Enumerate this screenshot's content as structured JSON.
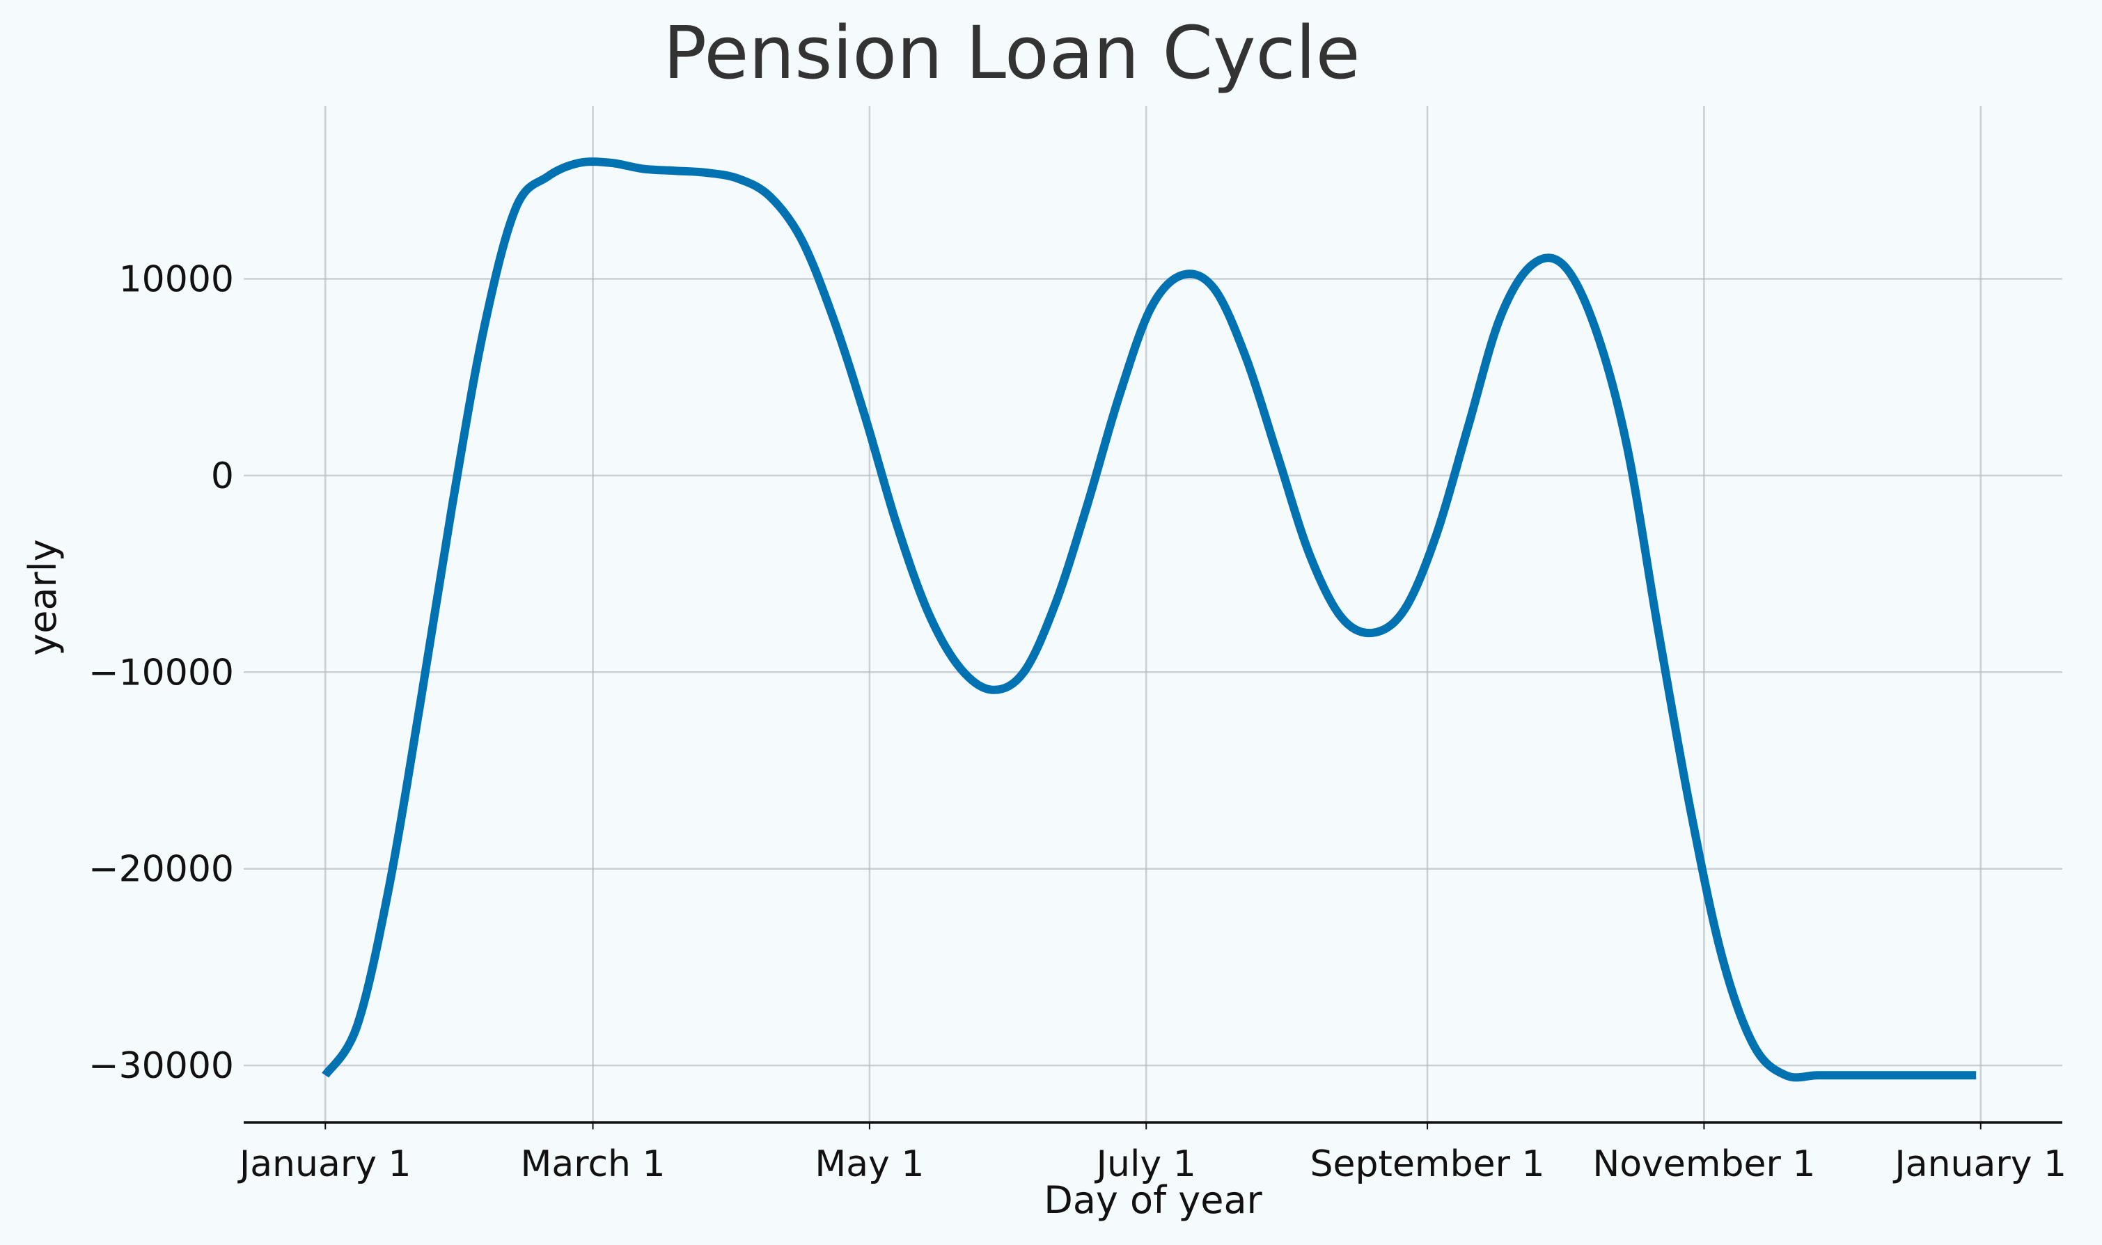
{
  "chart_data": {
    "type": "line",
    "title": "Pension Loan Cycle",
    "xlabel": "Day of year",
    "ylabel": "yearly",
    "x_ticks": [
      {
        "label": "January 1",
        "day": 0
      },
      {
        "label": "March 1",
        "day": 59
      },
      {
        "label": "May 1",
        "day": 120
      },
      {
        "label": "July 1",
        "day": 181
      },
      {
        "label": "September 1",
        "day": 243
      },
      {
        "label": "November 1",
        "day": 304
      },
      {
        "label": "January 1",
        "day": 365
      }
    ],
    "y_ticks": [
      {
        "label": "−30000",
        "value": -30000
      },
      {
        "label": "−20000",
        "value": -20000
      },
      {
        "label": "−10000",
        "value": -10000
      },
      {
        "label": "0",
        "value": 0
      },
      {
        "label": "10000",
        "value": 10000
      }
    ],
    "xlim": [
      -18,
      383
    ],
    "ylim": [
      -32900,
      18800
    ],
    "grid": true,
    "series_color": "#0072b2",
    "series": [
      {
        "x": [
          0,
          7,
          14,
          21,
          28,
          35,
          42,
          49,
          56,
          63,
          70,
          77,
          84,
          91,
          98,
          105,
          112,
          119,
          126,
          133,
          140,
          147,
          154,
          161,
          168,
          175,
          182,
          189,
          196,
          203,
          210,
          217,
          224,
          231,
          238,
          245,
          252,
          259,
          266,
          273,
          280,
          287,
          294,
          301,
          308,
          315,
          322,
          329,
          336,
          343,
          350,
          357,
          364
        ],
        "values": [
          -30500,
          -28000,
          -21000,
          -11500,
          -1500,
          7500,
          13600,
          15200,
          15900,
          15900,
          15600,
          15500,
          15400,
          15100,
          14200,
          12000,
          8000,
          3000,
          -2500,
          -7000,
          -9800,
          -10900,
          -10000,
          -6500,
          -1500,
          4000,
          8500,
          10200,
          9500,
          6000,
          1000,
          -4000,
          -7200,
          -8000,
          -6800,
          -3000,
          2500,
          8000,
          10700,
          10700,
          7500,
          1500,
          -8000,
          -17000,
          -24500,
          -29000,
          -30500,
          -30500,
          -30500,
          -30500,
          -30500,
          -30500,
          -30500
        ]
      }
    ]
  }
}
